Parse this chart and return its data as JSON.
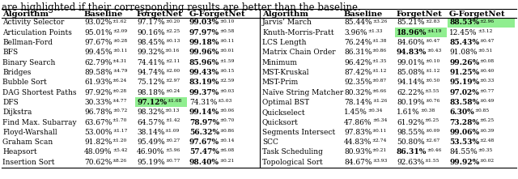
{
  "caption": "are highlighted if their corresponding results are better than the baseline.",
  "rows_left": [
    {
      "name": "Activity Selector",
      "baseline": "93.02%±1.62",
      "forgetnet": "97.17%±0.20",
      "gforgetnet": "99.03%±0.10",
      "fn_bold": false,
      "gfn_bold": true,
      "fn_green": false,
      "gfn_green": false
    },
    {
      "name": "Articulation Points",
      "baseline": "95.01%±2.09",
      "forgetnet": "90.16%±2.25",
      "gforgetnet": "97.97%±0.58",
      "fn_bold": false,
      "gfn_bold": true,
      "fn_green": false,
      "gfn_green": false
    },
    {
      "name": "Bellman-Ford",
      "baseline": "97.67%±0.28",
      "forgetnet": "98.45%±0.13",
      "gforgetnet": "99.18%±0.11",
      "fn_bold": false,
      "gfn_bold": true,
      "fn_green": false,
      "gfn_green": false
    },
    {
      "name": "BFS",
      "baseline": "99.45%±0.11",
      "forgetnet": "99.32%±0.16",
      "gforgetnet": "99.96%±0.01",
      "fn_bold": false,
      "gfn_bold": true,
      "fn_green": false,
      "gfn_green": false
    },
    {
      "name": "Binary Search",
      "baseline": "62.79%±4.31",
      "forgetnet": "74.41%±2.11",
      "gforgetnet": "85.96%±1.59",
      "fn_bold": false,
      "gfn_bold": true,
      "fn_green": false,
      "gfn_green": false
    },
    {
      "name": "Bridges",
      "baseline": "89.58%±4.79",
      "forgetnet": "94.74%±2.00",
      "gforgetnet": "99.43%±0.15",
      "fn_bold": false,
      "gfn_bold": true,
      "fn_green": false,
      "gfn_green": false
    },
    {
      "name": "Bubble Sort",
      "baseline": "61.93%±6.24",
      "forgetnet": "75.12%±2.97",
      "gforgetnet": "83.19%±2.59",
      "fn_bold": false,
      "gfn_bold": true,
      "fn_green": false,
      "gfn_green": false
    },
    {
      "name": "DAG Shortest Paths",
      "baseline": "97.92%±0.28",
      "forgetnet": "98.18%±0.24",
      "gforgetnet": "99.37%±0.03",
      "fn_bold": false,
      "gfn_bold": true,
      "fn_green": false,
      "gfn_green": false
    },
    {
      "name": "DFS",
      "baseline": "30.33%±4.77",
      "forgetnet": "97.12%±1.68",
      "gforgetnet": "74.31%±5.03",
      "fn_bold": true,
      "gfn_bold": false,
      "fn_green": true,
      "gfn_green": false
    },
    {
      "name": "Dijkstra",
      "baseline": "96.78%±0.72",
      "forgetnet": "98.32%±0.13",
      "gforgetnet": "99.14%±0.06",
      "fn_bold": false,
      "gfn_bold": true,
      "fn_green": false,
      "gfn_green": false
    },
    {
      "name": "Find Max. Subarray",
      "baseline": "63.67%±1.70",
      "forgetnet": "64.57%±1.42",
      "gforgetnet": "78.97%±0.70",
      "fn_bold": false,
      "gfn_bold": true,
      "fn_green": false,
      "gfn_green": false
    },
    {
      "name": "Floyd-Warshall",
      "baseline": "53.00%±1.17",
      "forgetnet": "38.14%±1.09",
      "gforgetnet": "56.32%±0.86",
      "fn_bold": false,
      "gfn_bold": true,
      "fn_green": false,
      "gfn_green": false
    },
    {
      "name": "Graham Scan",
      "baseline": "91.82%±1.20",
      "forgetnet": "95.49%±0.27",
      "gforgetnet": "97.67%±0.14",
      "fn_bold": false,
      "gfn_bold": true,
      "fn_green": false,
      "gfn_green": false
    },
    {
      "name": "Heapsort",
      "baseline": "48.09%±5.42",
      "forgetnet": "46.90%±5.96",
      "gforgetnet": "57.47%±6.08",
      "fn_bold": false,
      "gfn_bold": true,
      "fn_green": false,
      "gfn_green": false
    },
    {
      "name": "Insertion Sort",
      "baseline": "70.62%±8.26",
      "forgetnet": "95.19%±0.77",
      "gforgetnet": "98.40%±0.21",
      "fn_bold": false,
      "gfn_bold": true,
      "fn_green": false,
      "gfn_green": false
    }
  ],
  "rows_right": [
    {
      "name": "Jarvis’ March",
      "baseline": "85.44%±3.26",
      "forgetnet": "85.21%±2.83",
      "gforgetnet": "88.53%±2.96",
      "fn_bold": false,
      "gfn_bold": true,
      "fn_green": false,
      "gfn_green": true
    },
    {
      "name": "Knuth-Morris-Pratt",
      "baseline": "3.96%±1.33",
      "forgetnet": "18.96%±4.19",
      "gforgetnet": "12.45%±3.12",
      "fn_bold": true,
      "gfn_bold": false,
      "fn_green": true,
      "gfn_green": false
    },
    {
      "name": "LCS Length",
      "baseline": "76.24%±1.38",
      "forgetnet": "84.60%±0.47",
      "gforgetnet": "85.43%±0.47",
      "fn_bold": false,
      "gfn_bold": true,
      "fn_green": false,
      "gfn_green": false
    },
    {
      "name": "Matrix Chain Order",
      "baseline": "86.31%±0.86",
      "forgetnet": "94.83%±0.43",
      "gforgetnet": "91.08%±0.51",
      "fn_bold": true,
      "gfn_bold": false,
      "fn_green": false,
      "gfn_green": false
    },
    {
      "name": "Minimum",
      "baseline": "96.42%±1.35",
      "forgetnet": "99.01%±0.10",
      "gforgetnet": "99.26%±0.08",
      "fn_bold": false,
      "gfn_bold": true,
      "fn_green": false,
      "gfn_green": false
    },
    {
      "name": "MST-Kruskal",
      "baseline": "87.42%±1.12",
      "forgetnet": "85.08%±1.12",
      "gforgetnet": "91.25%±0.40",
      "fn_bold": false,
      "gfn_bold": true,
      "fn_green": false,
      "gfn_green": false
    },
    {
      "name": "MST-Prim",
      "baseline": "92.35%±0.87",
      "forgetnet": "94.14%±0.50",
      "gforgetnet": "95.19%±0.33",
      "fn_bold": false,
      "gfn_bold": true,
      "fn_green": false,
      "gfn_green": false
    },
    {
      "name": "Naïve String Matcher",
      "baseline": "80.32%±6.66",
      "forgetnet": "62.22%±3.55",
      "gforgetnet": "97.02%±0.77",
      "fn_bold": false,
      "gfn_bold": true,
      "fn_green": false,
      "gfn_green": false
    },
    {
      "name": "Optimal BST",
      "baseline": "78.14%±1.26",
      "forgetnet": "80.19%±0.76",
      "gforgetnet": "83.58%±0.49",
      "fn_bold": false,
      "gfn_bold": true,
      "fn_green": false,
      "gfn_green": false
    },
    {
      "name": "Quickselect",
      "baseline": "1.45%±0.34",
      "forgetnet": "1.61%±0.38",
      "gforgetnet": "6.30%±0.85",
      "fn_bold": false,
      "gfn_bold": true,
      "fn_green": false,
      "gfn_green": false
    },
    {
      "name": "Quicksort",
      "baseline": "47.86%±6.34",
      "forgetnet": "61.92%±6.25",
      "gforgetnet": "73.28%±6.25",
      "fn_bold": false,
      "gfn_bold": true,
      "fn_green": false,
      "gfn_green": false
    },
    {
      "name": "Segments Intersect",
      "baseline": "97.83%±0.11",
      "forgetnet": "98.55%±0.09",
      "gforgetnet": "99.06%±0.39",
      "fn_bold": false,
      "gfn_bold": true,
      "fn_green": false,
      "gfn_green": false
    },
    {
      "name": "SCC",
      "baseline": "44.83%±2.74",
      "forgetnet": "50.80%±2.67",
      "gforgetnet": "53.53%±2.48",
      "fn_bold": false,
      "gfn_bold": true,
      "fn_green": false,
      "gfn_green": false
    },
    {
      "name": "Task Scheduling",
      "baseline": "80.93%±0.21",
      "forgetnet": "86.31%±0.46",
      "gforgetnet": "84.55%±0.35",
      "fn_bold": true,
      "gfn_bold": false,
      "fn_green": false,
      "gfn_green": false
    },
    {
      "name": "Topological Sort",
      "baseline": "84.67%±3.93",
      "forgetnet": "92.63%±1.55",
      "gforgetnet": "99.92%±0.02",
      "fn_bold": false,
      "gfn_bold": true,
      "fn_green": false,
      "gfn_green": false
    }
  ],
  "green_color": "#90EE90"
}
